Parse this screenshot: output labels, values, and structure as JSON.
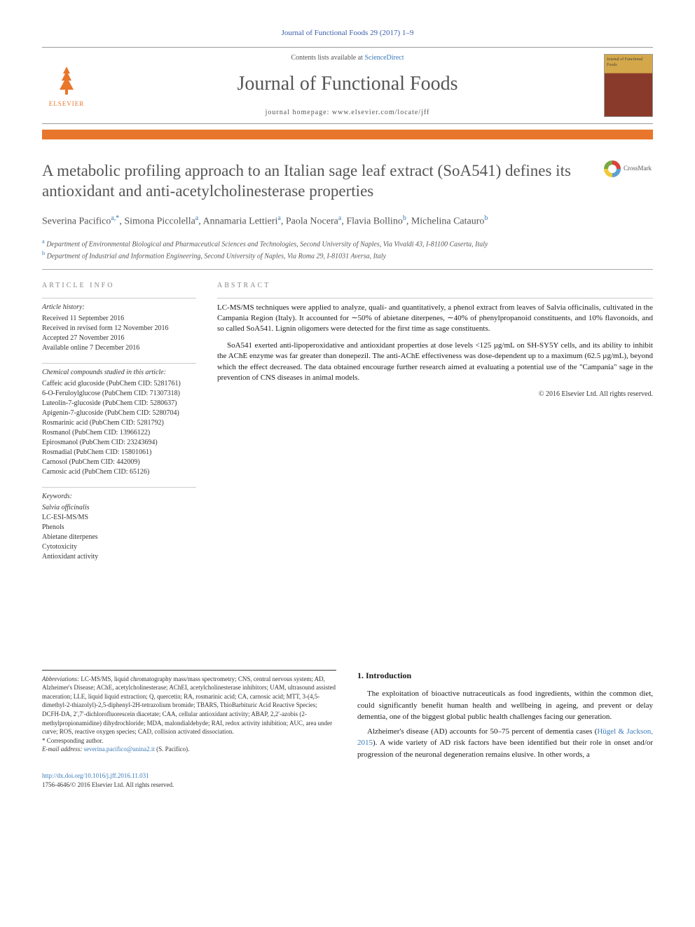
{
  "header": {
    "journal_ref": "Journal of Functional Foods 29 (2017) 1–9",
    "contents_text": "Contents lists available at ",
    "contents_link": "ScienceDirect",
    "journal_name": "Journal of Functional Foods",
    "homepage_label": "journal homepage: ",
    "homepage_url": "www.elsevier.com/locate/jff",
    "elsevier": "ELSEVIER",
    "cover_text": "Journal of Functional Foods"
  },
  "crossmark": "CrossMark",
  "title": "A metabolic profiling approach to an Italian sage leaf extract (SoA541) defines its antioxidant and anti-acetylcholinesterase properties",
  "authors_html": "Severina Pacifico",
  "authors": [
    {
      "name": "Severina Pacifico",
      "sup": "a,*"
    },
    {
      "name": "Simona Piccolella",
      "sup": "a"
    },
    {
      "name": "Annamaria Lettieri",
      "sup": "a"
    },
    {
      "name": "Paola Nocera",
      "sup": "a"
    },
    {
      "name": "Flavia Bollino",
      "sup": "b"
    },
    {
      "name": "Michelina Catauro",
      "sup": "b"
    }
  ],
  "affiliations": [
    {
      "sup": "a",
      "text": "Department of Environmental Biological and Pharmaceutical Sciences and Technologies, Second University of Naples, Via Vivaldi 43, I-81100 Caserta, Italy"
    },
    {
      "sup": "b",
      "text": "Department of Industrial and Information Engineering, Second University of Naples, Via Roma 29, I-81031 Aversa, Italy"
    }
  ],
  "article_info": {
    "label": "ARTICLE INFO",
    "history_heading": "Article history:",
    "history": "Received 11 September 2016\nReceived in revised form 12 November 2016\nAccepted 27 November 2016\nAvailable online 7 December 2016",
    "compounds_heading": "Chemical compounds studied in this article:",
    "compounds": "Caffeic acid glucoside (PubChem CID: 5281761)\n6-O-Feruloylglucose (PubChem CID: 71307318)\nLuteolin-7-glucoside (PubChem CID: 5280637)\nApigenin-7-glucoside (PubChem CID: 5280704)\nRosmarinic acid (PubChem CID: 5281792)\nRosmanol (PubChem CID: 13966122)\nEpirosmanol (PubChem CID: 23243694)\nRosmadial (PubChem CID: 15801061)\nCarnosol (PubChem CID: 442009)\nCarnosic acid (PubChem CID: 65126)",
    "keywords_heading": "Keywords:",
    "keywords": "Salvia officinalis\nLC-ESI-MS/MS\nPhenols\nAbietane diterpenes\nCytotoxicity\nAntioxidant activity"
  },
  "abstract": {
    "label": "ABSTRACT",
    "p1": "LC-MS/MS techniques were applied to analyze, quali- and quantitatively, a phenol extract from leaves of Salvia officinalis, cultivated in the Campania Region (Italy). It accounted for ∼50% of abietane diterpenes, ∼40% of phenylpropanoid constituents, and 10% flavonoids, and so called SoA541. Lignin oligomers were detected for the first time as sage constituents.",
    "p2": "SoA541 exerted anti-lipoperoxidative and antioxidant properties at dose levels <125 µg/mL on SH-SY5Y cells, and its ability to inhibit the AChE enzyme was far greater than donepezil. The anti-AChE effectiveness was dose-dependent up to a maximum (62.5 µg/mL), beyond which the effect decreased. The data obtained encourage further research aimed at evaluating a potential use of the \"Campania\" sage in the prevention of CNS diseases in animal models.",
    "copyright": "© 2016 Elsevier Ltd. All rights reserved."
  },
  "footnotes": {
    "abbrev_label": "Abbreviations:",
    "abbrev_text": " LC-MS/MS, liquid chromatography mass/mass spectrometry; CNS, central nervous system; AD, Alzheimer's Disease; AChE, acetylcholinesterase; AChEI, acetylcholinesterase inhibitors; UAM, ultrasound assisted maceration; LLE, liquid liquid extraction; Q, quercetin; RA, rosmarinic acid; CA, carnosic acid; MTT, 3-(4,5-dimethyl-2-thiazolyl)-2,5-diphenyl-2H-tetrazolium bromide; TBARS, ThioBarbituric Acid Reactive Species; DCFH-DA, 2′,7′-dichlorofluorescein diacetate; CAA, cellular antioxidant activity; ABAP, 2,2′-azobis (2-methylpropionamidine) dihydrochloride; MDA, malondialdehyde; RAI, redox activity inhibition; AUC, area under curve; ROS, reactive oxygen species; CAD, collision activated dissociation.",
    "corresponding": "* Corresponding author.",
    "email_label": "E-mail address: ",
    "email": "severina.pacifico@unina2.it",
    "email_suffix": " (S. Pacifico)."
  },
  "intro": {
    "heading": "1. Introduction",
    "p1": "The exploitation of bioactive nutraceuticals as food ingredients, within the common diet, could significantly benefit human health and wellbeing in ageing, and prevent or delay dementia, one of the biggest global public health challenges facing our generation.",
    "p2_a": "Alzheimer's disease (AD) accounts for 50–75 percent of dementia cases (",
    "p2_link": "Hügel & Jackson, 2015",
    "p2_b": "). A wide variety of AD risk factors have been identified but their role in onset and/or progression of the neuronal degeneration remains elusive. In other words, a"
  },
  "doi": {
    "url": "http://dx.doi.org/10.1016/j.jff.2016.11.031",
    "issn": "1756-4646/© 2016 Elsevier Ltd. All rights reserved."
  }
}
